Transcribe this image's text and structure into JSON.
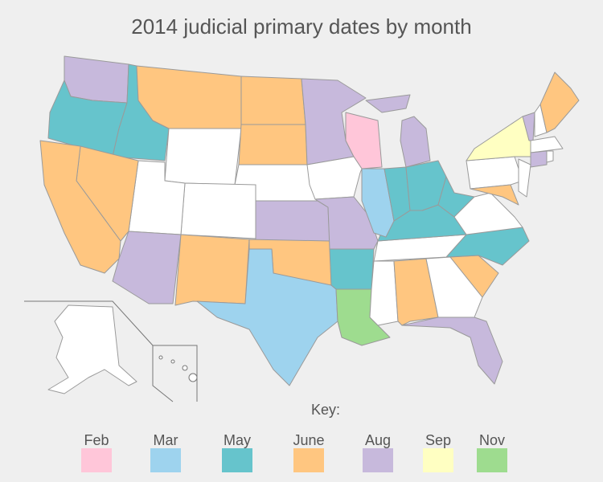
{
  "title": "2014 judicial primary dates by month",
  "legend": {
    "heading": "Key:",
    "items": [
      {
        "label": "Feb",
        "color": "#ffc6d9"
      },
      {
        "label": "Mar",
        "color": "#9ed3ee"
      },
      {
        "label": "May",
        "color": "#66c4cc"
      },
      {
        "label": "June",
        "color": "#ffc680"
      },
      {
        "label": "Aug",
        "color": "#c7b9dc"
      },
      {
        "label": "Sep",
        "color": "#ffffc2"
      },
      {
        "label": "Nov",
        "color": "#9edc8f"
      }
    ]
  }
}
